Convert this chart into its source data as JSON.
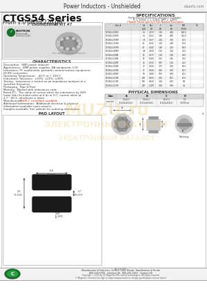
{
  "title_header": "Power Inductors - Unshielded",
  "website": "ctparts.com",
  "series_title": "CTGS54 Series",
  "series_subtitle": "From 1.0 μH to 220 μH",
  "eng_kit": "ENGINEERING KIT #7",
  "spec_title": "SPECIFICATIONS",
  "spec_note1": "Performance attributes tolerance available.",
  "spec_note2": "R = ±10%, L = ±20%, SRF = ±30%",
  "spec_note3": "(*Rated) Please specify in Part Number/Description",
  "spec_data": [
    [
      "CTGS54-1R0M",
      "1R0M",
      "1.0",
      "0.019",
      "3.30",
      "4.50",
      "130.0"
    ],
    [
      "CTGS54-1R5M",
      "1R5M",
      "1.5",
      "0.022",
      "2.90",
      "4.00",
      "110.0"
    ],
    [
      "CTGS54-2R2M",
      "2R2M",
      "2.2",
      "0.027",
      "2.50",
      "3.50",
      "85.0"
    ],
    [
      "CTGS54-3R3M",
      "3R3M",
      "3.3",
      "0.035",
      "2.10",
      "2.90",
      "70.0"
    ],
    [
      "CTGS54-4R7M",
      "4R7M",
      "4.7",
      "0.045",
      "1.80",
      "2.50",
      "58.0"
    ],
    [
      "CTGS54-6R8M",
      "6R8M",
      "6.8",
      "0.058",
      "1.50",
      "2.10",
      "46.0"
    ],
    [
      "CTGS54-100M",
      "100M",
      "10",
      "0.075",
      "1.30",
      "1.80",
      "38.0"
    ],
    [
      "CTGS54-150M",
      "150M",
      "15",
      "0.100",
      "1.05",
      "1.45",
      "30.0"
    ],
    [
      "CTGS54-220M",
      "220M",
      "22",
      "0.135",
      "0.87",
      "1.20",
      "24.0"
    ],
    [
      "CTGS54-330M",
      "330M",
      "33",
      "0.190",
      "0.72",
      "1.00",
      "19.5"
    ],
    [
      "CTGS54-470M",
      "470M",
      "47",
      "0.260",
      "0.60",
      "0.83",
      "15.5"
    ],
    [
      "CTGS54-680M",
      "680M",
      "68",
      "0.380",
      "0.50",
      "0.69",
      "12.5"
    ],
    [
      "CTGS54-101M",
      "101M",
      "100",
      "0.560",
      "0.41",
      "0.57",
      "10.0"
    ],
    [
      "CTGS54-151M",
      "151M",
      "150",
      "0.820",
      "0.34",
      "0.47",
      "8.0"
    ],
    [
      "CTGS54-221M",
      "221M",
      "220",
      "1.200",
      "0.28",
      "0.39",
      "6.5"
    ]
  ],
  "char_title": "CHARACTERISTICS",
  "char_lines": [
    [
      "Description:  SMD power inductor",
      false
    ],
    [
      "Applications:  VRM power supplies, DA equipment, LCD",
      false
    ],
    [
      "televisions, PC multimedia, portable communication equipment,",
      false
    ],
    [
      "DC/DC converters",
      false
    ],
    [
      "Operating Temperature:  -40°C to + 105°C",
      false
    ],
    [
      "Inductance Tolerance:  ±10%, ±20%, ±30%",
      false
    ],
    [
      "Testing:  Inductance is tested on an impedance analyzer at a",
      false
    ],
    [
      "specified frequency",
      false
    ],
    [
      "Packaging:  Tape & Reel",
      false
    ],
    [
      "Marking:  Marked with inductance code",
      false
    ],
    [
      "Rated DC:  The value of current when the inductance by 30%",
      false
    ],
    [
      "lower than its initial value at 4 dc or D.C. current when at",
      false
    ],
    [
      "4.7 ° 40°C, whichever is lower",
      false
    ],
    [
      "Manufacturer:  RoHS-C compliant available",
      true
    ],
    [
      "Additional Information:  Additional electrical & physical",
      false
    ],
    [
      "information available upon request.",
      false
    ],
    [
      "Samples available. See website for ordering information.",
      false
    ]
  ],
  "phys_title": "PHYSICAL DIMENSIONS",
  "phys_col_headers": [
    "Dim",
    "A",
    "B",
    "C",
    "D"
  ],
  "phys_row1": [
    "mm (in)",
    "5.4±0.3\n(0.213±0.012)",
    "5.4±0.3\n(0.213±0.012)",
    "3.8±0.3\n(0.150±0.012)",
    "1.0\n(0.039 in)"
  ],
  "pad_title": "PAD LAYOUT",
  "footer_part": "56-14-025",
  "footer_line1": "Manufacturer of Inductors, Chokes, Coils, Beads, Transformers & Ferrite",
  "footer_line2": "800-554-5705   info@us.US   800-462-1911   Contact US",
  "footer_line3": "Copyright © 2012 by CT Magnetics (R4 Central technologies). All rights reserved.",
  "footer_line4": "(**Magnetics reserves the right to make improvements or change specifications without notice)",
  "watermark1": "MUZU.ru",
  "watermark2": "ЭЛЕКТРОННЫЙ КАТАЛОГ",
  "logo_green": "#1a6e2e",
  "bg": "#ffffff",
  "red_text": "#cc2200"
}
